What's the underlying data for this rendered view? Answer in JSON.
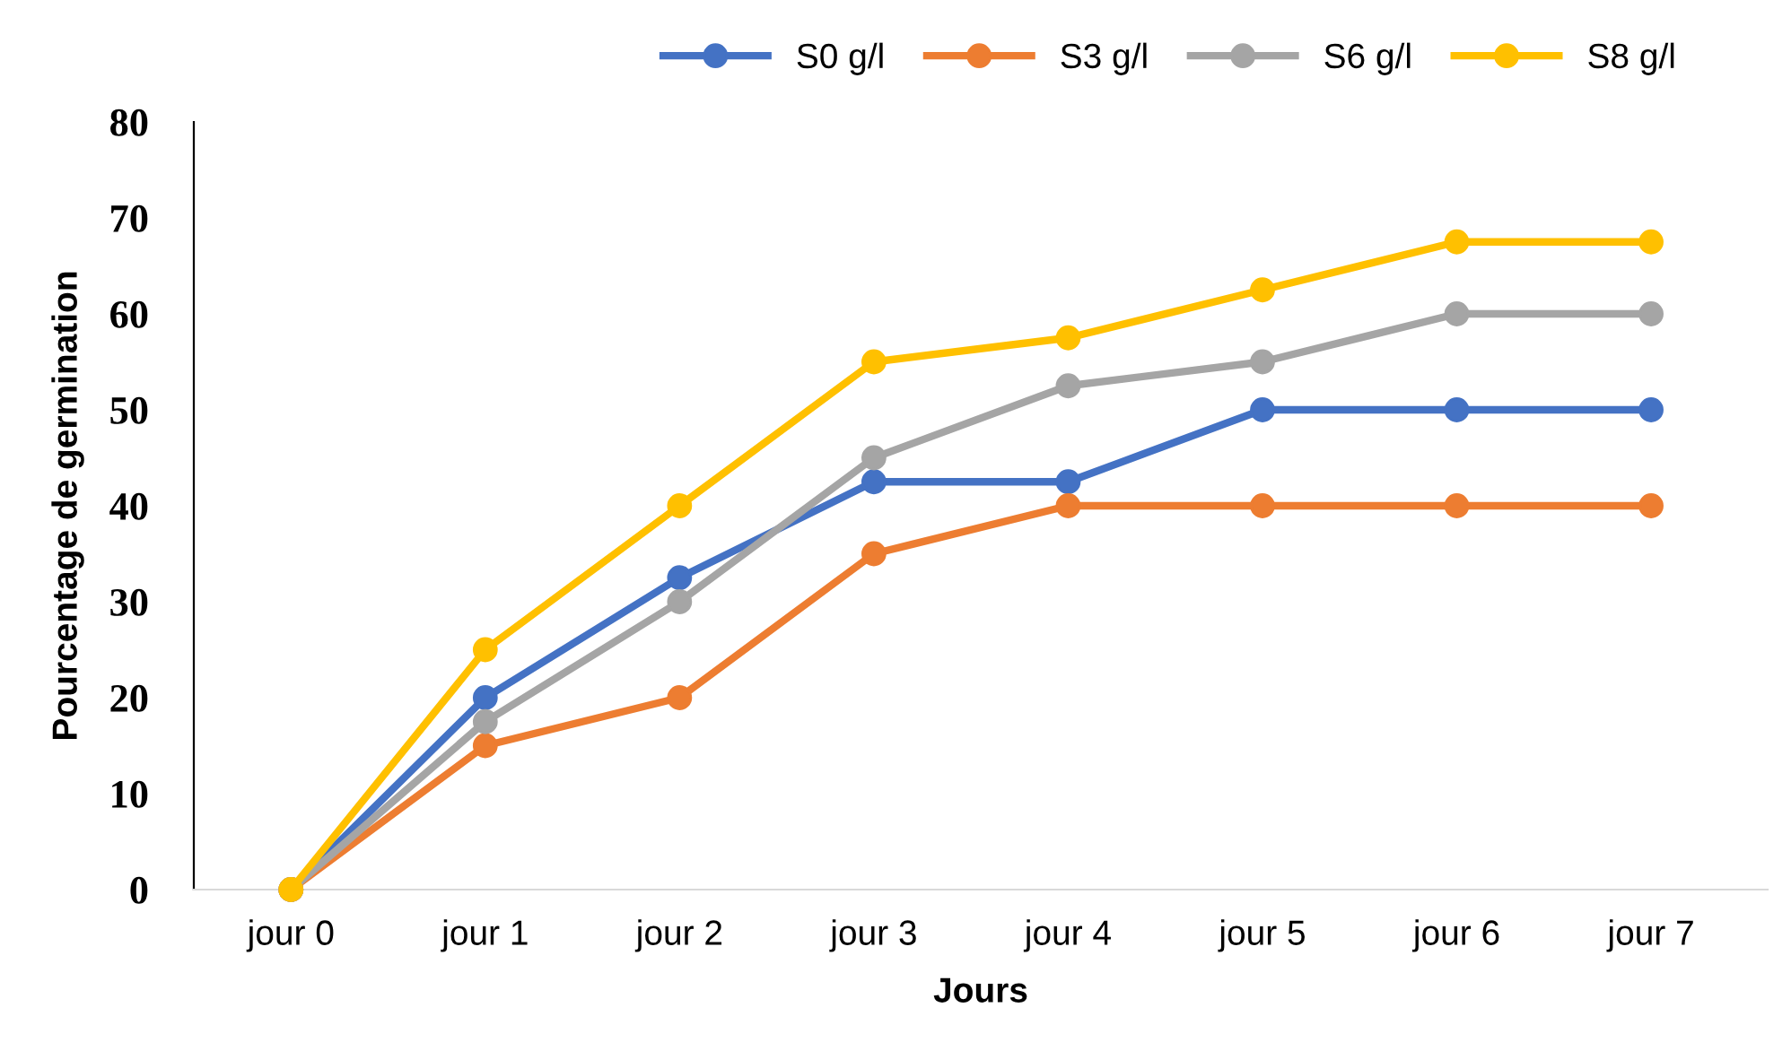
{
  "chart_data": {
    "type": "line",
    "xlabel": "Jours",
    "ylabel": "Pourcentage de germination",
    "categories": [
      "jour 0",
      "jour 1",
      "jour 2",
      "jour 3",
      "jour 4",
      "jour 5",
      "jour 6",
      "jour 7"
    ],
    "series": [
      {
        "name": "S0 g/l",
        "color": "#4472c4",
        "values": [
          0,
          20,
          32.5,
          42.5,
          42.5,
          50,
          50,
          50
        ]
      },
      {
        "name": "S3 g/l",
        "color": "#ed7d31",
        "values": [
          0,
          15,
          20,
          35,
          40,
          40,
          40,
          40
        ]
      },
      {
        "name": "S6 g/l",
        "color": "#a5a5a5",
        "values": [
          0,
          17.5,
          30,
          45,
          52.5,
          55,
          60,
          60
        ]
      },
      {
        "name": "S8 g/l",
        "color": "#ffc000",
        "values": [
          0,
          25,
          40,
          55,
          57.5,
          62.5,
          67.5,
          67.5
        ]
      }
    ],
    "ylim": [
      0,
      80
    ],
    "yticks": [
      0,
      10,
      20,
      30,
      40,
      50,
      60,
      70,
      80
    ],
    "grid": false,
    "legend": "top",
    "marker": "circle",
    "line_style": "solid"
  }
}
